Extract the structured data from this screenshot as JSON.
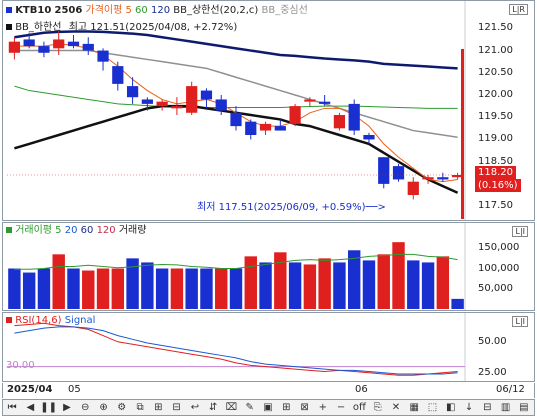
{
  "price_pane": {
    "symbol": "KTB10",
    "contract": "2506",
    "legend": [
      {
        "label": "가격이평 5",
        "color": "#e8601a"
      },
      {
        "label": "60",
        "color": "#2e9a2e"
      },
      {
        "label": "120",
        "color": "#1a2e8c"
      },
      {
        "label": "BB_상한선(20,2,c)",
        "color": "#222222"
      },
      {
        "label": "BB_중심선",
        "color": "#909090"
      }
    ],
    "legend2": "BB_하한선",
    "high_note": "최고 121.51(2025/04/08, +2.72%)",
    "low_note": "최저 117.51(2025/06/09, +0.59%)──>",
    "last_price": "118.20",
    "last_change": "(0.16%)",
    "y_ticks": [
      "121.50",
      "121.00",
      "120.50",
      "120.00",
      "119.50",
      "119.00",
      "118.50",
      "117.50"
    ],
    "corner_label": "L|R"
  },
  "volume_pane": {
    "legend": [
      {
        "label": "거래이평 5",
        "color": "#2e9a2e"
      },
      {
        "label": "20",
        "color": "#1a5ad0"
      },
      {
        "label": "60",
        "color": "#1a2e8c"
      },
      {
        "label": "120",
        "color": "#c0304a"
      },
      {
        "label": "거래량",
        "color": "#333333"
      }
    ],
    "y_ticks": [
      "150,000",
      "100,000",
      "50,000"
    ],
    "corner_label": "L|I"
  },
  "rsi_pane": {
    "legend": [
      {
        "label": "RSI(14,6)",
        "color": "#e0201e"
      },
      {
        "label": "Signal",
        "color": "#1a5ad0"
      }
    ],
    "level_label": "30.00",
    "y_ticks": [
      "50.00",
      "25.00"
    ],
    "corner_label": "L|I"
  },
  "x_axis": {
    "labels": [
      "2025/04",
      "05",
      "06"
    ],
    "last_date": "06/12"
  },
  "toolbar": {
    "items": [
      "⏮",
      "◀",
      "❚❚",
      "▶",
      "⊖",
      "⊕",
      "⚙",
      "⧉",
      "⊞",
      "⊟",
      "↩",
      "⇵",
      "⌧",
      "✎",
      "▣",
      "⊞",
      "⊠",
      "+",
      "−",
      "off",
      "⎘",
      "✕",
      "▦",
      "⬚",
      "◧",
      "↓",
      "⊟",
      "▥",
      "▤"
    ]
  },
  "colors": {
    "up": "#e0201e",
    "down": "#1a2fd0",
    "bb_upper": "#0d1a6e",
    "bb_lower": "#111111",
    "bb_mid": "#909090",
    "ma5": "#e8601a",
    "ma60": "#2e9a2e",
    "accent": "#e0201e"
  },
  "chart_data": [
    {
      "type": "candlestick",
      "title": "KTB10 2506",
      "ylim": [
        117.3,
        121.8
      ],
      "candles": [
        {
          "o": 120.95,
          "h": 121.3,
          "l": 120.8,
          "c": 121.2
        },
        {
          "o": 121.25,
          "h": 121.4,
          "l": 121.05,
          "c": 121.1
        },
        {
          "o": 121.1,
          "h": 121.2,
          "l": 120.85,
          "c": 120.95
        },
        {
          "o": 121.05,
          "h": 121.45,
          "l": 120.9,
          "c": 121.25
        },
        {
          "o": 121.2,
          "h": 121.35,
          "l": 121.05,
          "c": 121.1
        },
        {
          "o": 121.15,
          "h": 121.3,
          "l": 120.9,
          "c": 121.0
        },
        {
          "o": 121.0,
          "h": 121.05,
          "l": 120.55,
          "c": 120.75
        },
        {
          "o": 120.65,
          "h": 120.75,
          "l": 120.1,
          "c": 120.25
        },
        {
          "o": 120.2,
          "h": 120.4,
          "l": 119.8,
          "c": 119.95
        },
        {
          "o": 119.9,
          "h": 119.95,
          "l": 119.65,
          "c": 119.8
        },
        {
          "o": 119.75,
          "h": 119.9,
          "l": 119.65,
          "c": 119.85
        },
        {
          "o": 119.7,
          "h": 119.95,
          "l": 119.55,
          "c": 119.75
        },
        {
          "o": 119.6,
          "h": 120.3,
          "l": 119.55,
          "c": 120.2
        },
        {
          "o": 120.1,
          "h": 120.15,
          "l": 119.7,
          "c": 119.9
        },
        {
          "o": 119.9,
          "h": 120.0,
          "l": 119.55,
          "c": 119.65
        },
        {
          "o": 119.6,
          "h": 119.75,
          "l": 119.2,
          "c": 119.3
        },
        {
          "o": 119.4,
          "h": 119.45,
          "l": 119.0,
          "c": 119.1
        },
        {
          "o": 119.2,
          "h": 119.4,
          "l": 119.1,
          "c": 119.35
        },
        {
          "o": 119.3,
          "h": 119.45,
          "l": 119.2,
          "c": 119.2
        },
        {
          "o": 119.35,
          "h": 119.8,
          "l": 119.3,
          "c": 119.75
        },
        {
          "o": 119.85,
          "h": 119.95,
          "l": 119.75,
          "c": 119.9
        },
        {
          "o": 119.85,
          "h": 120.0,
          "l": 119.75,
          "c": 119.8
        },
        {
          "o": 119.25,
          "h": 119.6,
          "l": 119.2,
          "c": 119.55
        },
        {
          "o": 119.8,
          "h": 119.9,
          "l": 119.1,
          "c": 119.2
        },
        {
          "o": 119.1,
          "h": 119.15,
          "l": 118.9,
          "c": 119.0
        },
        {
          "o": 118.6,
          "h": 118.6,
          "l": 117.9,
          "c": 118.0
        },
        {
          "o": 118.4,
          "h": 118.45,
          "l": 118.05,
          "c": 118.1
        },
        {
          "o": 117.75,
          "h": 118.15,
          "l": 117.65,
          "c": 118.05
        },
        {
          "o": 118.1,
          "h": 118.2,
          "l": 118.0,
          "c": 118.15
        },
        {
          "o": 118.15,
          "h": 118.25,
          "l": 118.05,
          "c": 118.1
        },
        {
          "o": 118.15,
          "h": 118.25,
          "l": 118.1,
          "c": 118.2
        }
      ],
      "bb_upper": [
        121.3,
        121.35,
        121.4,
        121.42,
        121.43,
        121.43,
        121.42,
        121.4,
        121.38,
        121.35,
        121.3,
        121.25,
        121.2,
        121.15,
        121.1,
        121.05,
        121.0,
        120.95,
        120.9,
        120.88,
        120.85,
        120.82,
        120.8,
        120.78,
        120.75,
        120.7,
        120.68,
        120.66,
        120.64,
        120.62,
        120.6
      ],
      "bb_mid": [
        121.0,
        121.0,
        121.0,
        121.0,
        121.0,
        121.0,
        120.95,
        120.9,
        120.85,
        120.8,
        120.75,
        120.7,
        120.65,
        120.6,
        120.5,
        120.4,
        120.3,
        120.2,
        120.1,
        120.0,
        119.9,
        119.8,
        119.7,
        119.6,
        119.5,
        119.4,
        119.3,
        119.2,
        119.15,
        119.1,
        119.05
      ],
      "bb_lower": [
        118.8,
        118.9,
        119.0,
        119.1,
        119.2,
        119.3,
        119.4,
        119.5,
        119.6,
        119.7,
        119.75,
        119.75,
        119.75,
        119.7,
        119.65,
        119.6,
        119.55,
        119.5,
        119.45,
        119.35,
        119.3,
        119.2,
        119.1,
        119.0,
        118.9,
        118.7,
        118.5,
        118.3,
        118.1,
        117.95,
        117.8
      ],
      "ma5": [
        121.1,
        121.1,
        121.1,
        121.15,
        121.12,
        121.05,
        120.9,
        120.65,
        120.35,
        120.1,
        119.9,
        119.8,
        119.85,
        119.9,
        119.8,
        119.6,
        119.4,
        119.3,
        119.3,
        119.4,
        119.6,
        119.7,
        119.7,
        119.55,
        119.3,
        118.9,
        118.6,
        118.35,
        118.1,
        118.05,
        118.1
      ],
      "ma60": [
        120.2,
        120.1,
        120.05,
        120.0,
        119.95,
        119.9,
        119.85,
        119.8,
        119.78,
        119.76,
        119.74,
        119.72,
        119.72,
        119.72,
        119.72,
        119.72,
        119.72,
        119.72,
        119.72,
        119.73,
        119.74,
        119.75,
        119.75,
        119.75,
        119.74,
        119.73,
        119.72,
        119.71,
        119.7,
        119.7,
        119.7
      ]
    },
    {
      "type": "bar",
      "title": "거래량",
      "ylim": [
        0,
        200000
      ],
      "values": [
        100000,
        90000,
        100000,
        135000,
        100000,
        95000,
        100000,
        100000,
        125000,
        115000,
        100000,
        100000,
        100000,
        100000,
        100000,
        100000,
        130000,
        115000,
        140000,
        115000,
        110000,
        125000,
        115000,
        145000,
        120000,
        135000,
        165000,
        120000,
        115000,
        130000,
        25000
      ],
      "colors": [
        "down",
        "down",
        "down",
        "up",
        "down",
        "up",
        "up",
        "up",
        "down",
        "down",
        "down",
        "up",
        "down",
        "down",
        "up",
        "down",
        "up",
        "down",
        "up",
        "down",
        "up",
        "up",
        "down",
        "down",
        "down",
        "up",
        "up",
        "down",
        "down",
        "up",
        "down"
      ],
      "ma5": [
        98000,
        98000,
        100000,
        105000,
        105000,
        108000,
        105000,
        102000,
        104000,
        108000,
        110000,
        109000,
        105000,
        103000,
        100000,
        100000,
        105000,
        110000,
        115000,
        120000,
        122000,
        120000,
        122000,
        125000,
        130000,
        132000,
        135000,
        135000,
        130000,
        128000,
        122000
      ]
    },
    {
      "type": "line",
      "title": "RSI(14,6)",
      "ylim": [
        20,
        70
      ],
      "series": [
        {
          "name": "RSI(14,6)",
          "color": "#e0201e",
          "values": [
            63,
            64,
            65,
            63,
            62,
            60,
            55,
            50,
            48,
            46,
            44,
            42,
            40,
            38,
            36,
            33,
            31,
            30,
            29,
            28,
            27,
            26,
            27,
            26,
            25,
            24,
            23,
            23,
            24,
            25,
            26
          ]
        },
        {
          "name": "Signal",
          "color": "#1a5ad0",
          "values": [
            57,
            59,
            61,
            62,
            62,
            61,
            59,
            55,
            52,
            49,
            47,
            45,
            43,
            41,
            39,
            37,
            34,
            32,
            31,
            30,
            29,
            28,
            27,
            27,
            26,
            25,
            24,
            24,
            24,
            24,
            25
          ]
        }
      ]
    }
  ]
}
